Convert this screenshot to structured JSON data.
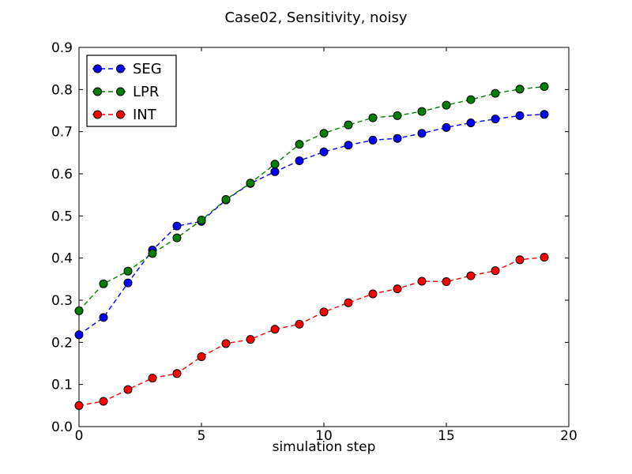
{
  "figure": {
    "background": "#ffffff",
    "axes_color": "#000000",
    "marker_edge_color": "#000000"
  },
  "chart_data": {
    "type": "line",
    "title": "Case02, Sensitivity, noisy",
    "xlabel": "simulation step",
    "ylabel": "",
    "xlim": [
      0,
      20
    ],
    "ylim": [
      0.0,
      0.9
    ],
    "xticks": [
      0,
      5,
      10,
      15,
      20
    ],
    "xtick_labels": [
      "0",
      "5",
      "10",
      "15",
      "20"
    ],
    "yticks": [
      0.0,
      0.1,
      0.2,
      0.3,
      0.4,
      0.5,
      0.6,
      0.7,
      0.8,
      0.9
    ],
    "ytick_labels": [
      "0.0",
      "0.1",
      "0.2",
      "0.3",
      "0.4",
      "0.5",
      "0.6",
      "0.7",
      "0.8",
      "0.9"
    ],
    "grid": false,
    "legend": {
      "position": "upper left",
      "entries": [
        "SEG",
        "LPR",
        "INT"
      ]
    },
    "x": [
      0,
      1,
      2,
      3,
      4,
      5,
      6,
      7,
      8,
      9,
      10,
      11,
      12,
      13,
      14,
      15,
      16,
      17,
      18,
      19
    ],
    "series": [
      {
        "name": "SEG",
        "color": "#0000ff",
        "linestyle": "dashed",
        "marker": "circle",
        "values": [
          0.218,
          0.259,
          0.341,
          0.419,
          0.476,
          0.487,
          0.538,
          0.577,
          0.605,
          0.631,
          0.652,
          0.668,
          0.68,
          0.684,
          0.696,
          0.71,
          0.721,
          0.73,
          0.738,
          0.741
        ]
      },
      {
        "name": "LPR",
        "color": "#008000",
        "linestyle": "dashed",
        "marker": "circle",
        "values": [
          0.275,
          0.339,
          0.369,
          0.411,
          0.448,
          0.49,
          0.539,
          0.578,
          0.623,
          0.67,
          0.696,
          0.716,
          0.733,
          0.738,
          0.748,
          0.763,
          0.776,
          0.791,
          0.801,
          0.807
        ]
      },
      {
        "name": "INT",
        "color": "#ff0000",
        "linestyle": "dashed",
        "marker": "circle",
        "values": [
          0.05,
          0.06,
          0.088,
          0.115,
          0.126,
          0.166,
          0.197,
          0.207,
          0.231,
          0.243,
          0.272,
          0.294,
          0.315,
          0.327,
          0.345,
          0.344,
          0.358,
          0.37,
          0.396,
          0.402
        ]
      }
    ]
  }
}
